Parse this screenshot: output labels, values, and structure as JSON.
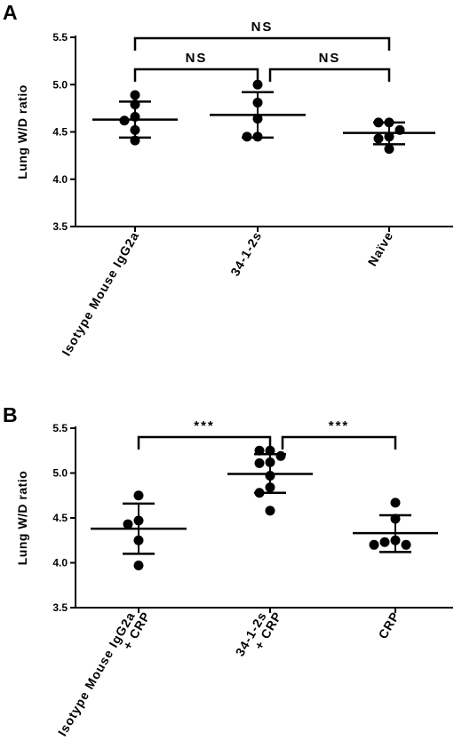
{
  "chart_data": [
    {
      "panel": "A",
      "type": "scatter",
      "ylabel": "Lung W/D ratio",
      "ylim": [
        3.5,
        5.5
      ],
      "yticks": [
        "3.5",
        "4.0",
        "4.5",
        "5.0",
        "5.5"
      ],
      "grid": false,
      "categories": [
        {
          "lines": [
            "Isotype Mouse IgG2a"
          ]
        },
        {
          "lines": [
            "34-1-2s"
          ]
        },
        {
          "lines": [
            "Naïve"
          ]
        }
      ],
      "groups": [
        {
          "points": [
            4.89,
            4.79,
            4.66,
            4.62,
            4.52,
            4.41
          ],
          "mean": 4.63,
          "sd_low": 4.44,
          "sd_high": 4.82
        },
        {
          "points": [
            5.0,
            4.81,
            4.64,
            4.45,
            4.45
          ],
          "mean": 4.68,
          "sd_low": 4.44,
          "sd_high": 4.92
        },
        {
          "points": [
            4.6,
            4.6,
            4.52,
            4.45,
            4.43,
            4.32
          ],
          "mean": 4.49,
          "sd_low": 4.37,
          "sd_high": 4.6
        }
      ],
      "comparisons": [
        {
          "from": 0,
          "to": 2,
          "label": "NS",
          "level": 2
        },
        {
          "from": 0,
          "to": 1,
          "label": "NS",
          "level": 1
        },
        {
          "from": 1,
          "to": 2,
          "label": "NS",
          "level": 1
        }
      ]
    },
    {
      "panel": "B",
      "type": "scatter",
      "ylabel": "Lung W/D ratio",
      "ylim": [
        3.5,
        5.5
      ],
      "yticks": [
        "3.5",
        "4.0",
        "4.5",
        "5.0",
        "5.5"
      ],
      "grid": false,
      "categories": [
        {
          "lines": [
            "Isotype Mouse IgG2a",
            "+ CRP"
          ]
        },
        {
          "lines": [
            "34-1-2s",
            "+ CRP"
          ]
        },
        {
          "lines": [
            "CRP"
          ]
        }
      ],
      "groups": [
        {
          "points": [
            4.75,
            4.47,
            4.43,
            4.25,
            3.97
          ],
          "mean": 4.38,
          "sd_low": 4.1,
          "sd_high": 4.66
        },
        {
          "points": [
            5.25,
            5.25,
            5.19,
            5.12,
            5.11,
            4.97,
            4.84,
            4.78,
            4.58
          ],
          "mean": 4.99,
          "sd_low": 4.78,
          "sd_high": 5.21
        },
        {
          "points": [
            4.67,
            4.49,
            4.25,
            4.23,
            4.2,
            4.2
          ],
          "mean": 4.33,
          "sd_low": 4.12,
          "sd_high": 4.53
        }
      ],
      "comparisons": [
        {
          "from": 0,
          "to": 1,
          "label": "***",
          "level": 1
        },
        {
          "from": 1,
          "to": 2,
          "label": "***",
          "level": 1
        }
      ]
    }
  ]
}
